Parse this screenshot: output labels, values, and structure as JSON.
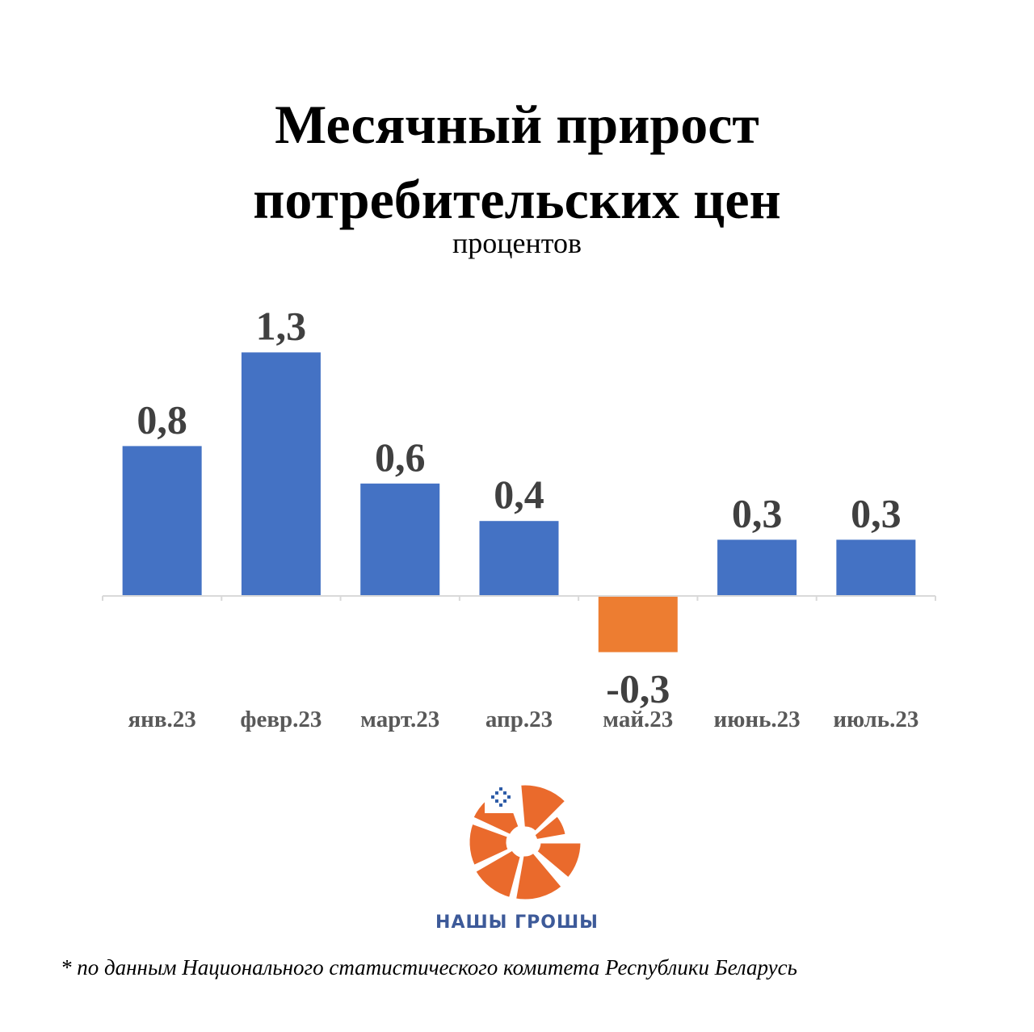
{
  "chart_data": {
    "type": "bar",
    "title_line1": "Месячный прирост",
    "title_line2": "потребительских цен",
    "subtitle": "процентов",
    "categories": [
      "янв.23",
      "февр.23",
      "март.23",
      "апр.23",
      "май.23",
      "июнь.23",
      "июль.23"
    ],
    "values": [
      0.8,
      1.3,
      0.6,
      0.4,
      -0.3,
      0.3,
      0.3
    ],
    "value_labels": [
      "0,8",
      "1,3",
      "0,6",
      "0,4",
      "-0,3",
      "0,3",
      "0,3"
    ],
    "positive_color": "#4472C4",
    "negative_color": "#ED7D31",
    "label_color": "#404040",
    "ylim": [
      -0.3,
      1.3
    ],
    "grid": false
  },
  "brand": {
    "name": "НАШЫ ГРОШЫ",
    "name_color": "#3D5A99",
    "logo_color": "#EA6A2C",
    "ornament_color": "#2F5DA8"
  },
  "footnote": "* по данным Национального статистического комитета Республики Беларусь"
}
